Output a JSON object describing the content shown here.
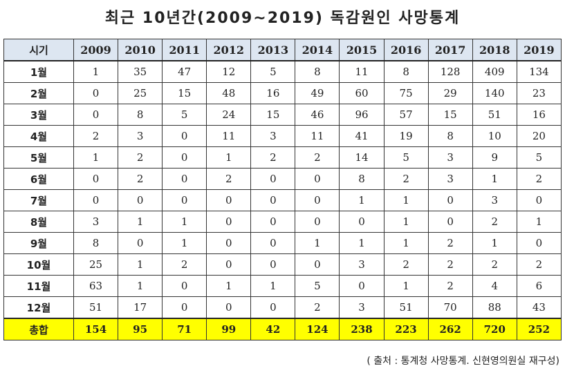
{
  "title": "최근  10년간(2009~2019)  독감원인  사망통계",
  "table": {
    "corner": "시기",
    "years": [
      "2009",
      "2010",
      "2011",
      "2012",
      "2013",
      "2014",
      "2015",
      "2016",
      "2017",
      "2018",
      "2019"
    ],
    "rows": [
      {
        "month": "1월",
        "values": [
          "1",
          "35",
          "47",
          "12",
          "5",
          "8",
          "11",
          "8",
          "128",
          "409",
          "134"
        ]
      },
      {
        "month": "2월",
        "values": [
          "0",
          "25",
          "15",
          "48",
          "16",
          "49",
          "60",
          "75",
          "29",
          "140",
          "23"
        ]
      },
      {
        "month": "3월",
        "values": [
          "0",
          "8",
          "5",
          "24",
          "15",
          "46",
          "96",
          "57",
          "15",
          "51",
          "16"
        ]
      },
      {
        "month": "4월",
        "values": [
          "2",
          "3",
          "0",
          "11",
          "3",
          "11",
          "41",
          "19",
          "8",
          "10",
          "20"
        ]
      },
      {
        "month": "5월",
        "values": [
          "1",
          "2",
          "0",
          "1",
          "2",
          "2",
          "14",
          "5",
          "3",
          "9",
          "5"
        ]
      },
      {
        "month": "6월",
        "values": [
          "0",
          "2",
          "0",
          "2",
          "0",
          "0",
          "8",
          "2",
          "3",
          "1",
          "2"
        ]
      },
      {
        "month": "7월",
        "values": [
          "0",
          "0",
          "0",
          "0",
          "0",
          "0",
          "1",
          "1",
          "0",
          "3",
          "0"
        ]
      },
      {
        "month": "8월",
        "values": [
          "3",
          "1",
          "1",
          "0",
          "0",
          "0",
          "0",
          "1",
          "0",
          "2",
          "1"
        ]
      },
      {
        "month": "9월",
        "values": [
          "8",
          "0",
          "1",
          "0",
          "0",
          "1",
          "1",
          "1",
          "2",
          "1",
          "0"
        ]
      },
      {
        "month": "10월",
        "values": [
          "25",
          "1",
          "2",
          "0",
          "0",
          "0",
          "3",
          "2",
          "2",
          "2",
          "2"
        ]
      },
      {
        "month": "11월",
        "values": [
          "63",
          "1",
          "0",
          "1",
          "1",
          "5",
          "0",
          "1",
          "2",
          "4",
          "6"
        ]
      },
      {
        "month": "12월",
        "values": [
          "51",
          "17",
          "0",
          "0",
          "0",
          "2",
          "3",
          "51",
          "70",
          "88",
          "43"
        ]
      }
    ],
    "total": {
      "label": "총합",
      "values": [
        "154",
        "95",
        "71",
        "99",
        "42",
        "124",
        "238",
        "223",
        "262",
        "720",
        "252"
      ]
    }
  },
  "source": "( 출처 : 통계청 사망통계. 신현영의원실 재구성)",
  "colors": {
    "header_bg": "#dde6f1",
    "total_bg": "#ffff00"
  }
}
